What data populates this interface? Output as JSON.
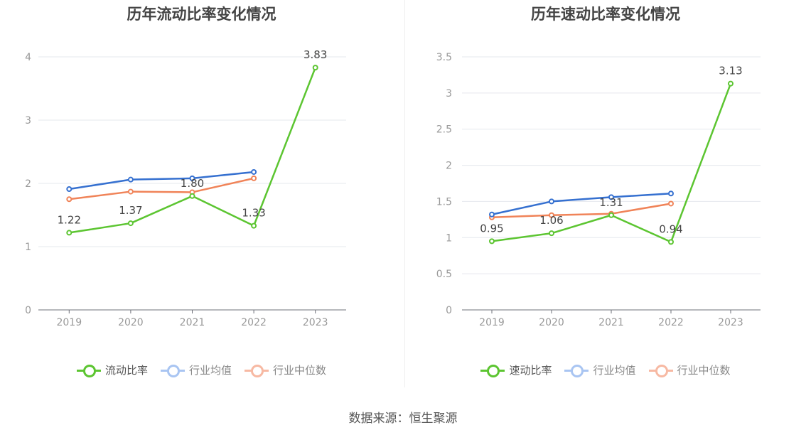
{
  "source": "数据来源：恒生聚源",
  "chart_data": [
    {
      "type": "line",
      "title": "历年流动比率变化情况",
      "categories": [
        "2019",
        "2020",
        "2021",
        "2022",
        "2023"
      ],
      "ylim": [
        0,
        4
      ],
      "yticks": [
        0,
        1,
        2,
        3,
        4
      ],
      "grid": true,
      "legend_position": "bottom",
      "series": [
        {
          "name": "流动比率",
          "color": "#5cc531",
          "values": [
            1.22,
            1.37,
            1.8,
            1.33,
            3.83
          ],
          "labels": [
            "1.22",
            "1.37",
            "1.80",
            "1.33",
            "3.83"
          ]
        },
        {
          "name": "行业均值",
          "color": "#3570d0",
          "values": [
            1.91,
            2.06,
            2.08,
            2.18,
            null
          ]
        },
        {
          "name": "行业中位数",
          "color": "#f08358",
          "values": [
            1.75,
            1.87,
            1.86,
            2.08,
            null
          ]
        }
      ]
    },
    {
      "type": "line",
      "title": "历年速动比率变化情况",
      "categories": [
        "2019",
        "2020",
        "2021",
        "2022",
        "2023"
      ],
      "ylim": [
        0,
        3.5
      ],
      "yticks": [
        0,
        0.5,
        1,
        1.5,
        2,
        2.5,
        3,
        3.5
      ],
      "grid": true,
      "legend_position": "bottom",
      "series": [
        {
          "name": "速动比率",
          "color": "#5cc531",
          "values": [
            0.95,
            1.06,
            1.31,
            0.94,
            3.13
          ],
          "labels": [
            "0.95",
            "1.06",
            "1.31",
            "0.94",
            "3.13"
          ]
        },
        {
          "name": "行业均值",
          "color": "#3570d0",
          "values": [
            1.32,
            1.5,
            1.56,
            1.61,
            null
          ]
        },
        {
          "name": "行业中位数",
          "color": "#f08358",
          "values": [
            1.28,
            1.31,
            1.33,
            1.47,
            null
          ]
        }
      ]
    }
  ],
  "legend_faded_colors": [
    "#a9c5f2",
    "#f7b9a3"
  ]
}
